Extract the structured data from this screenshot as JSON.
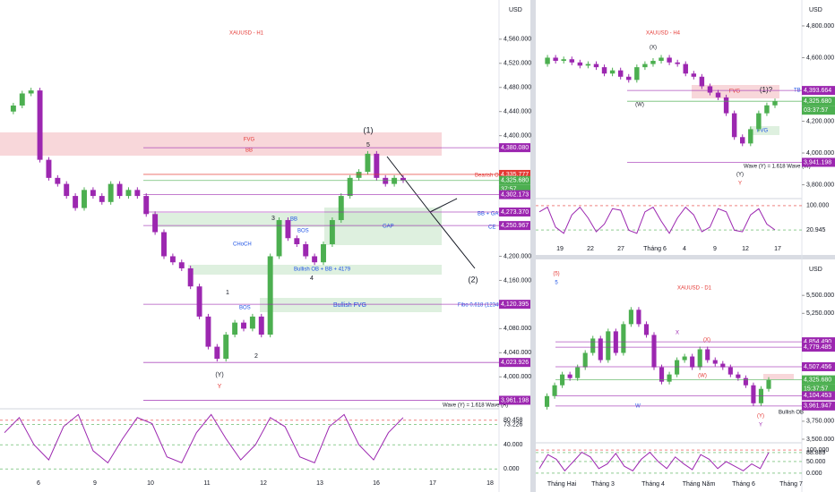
{
  "panels": [
    {
      "title": "XAUUSD - H1",
      "currency": "USD",
      "ylim": [
        3950,
        4625
      ],
      "yticks": [
        {
          "value": 4560,
          "label": "4,560.000"
        },
        {
          "value": 4520,
          "label": "4,520.000"
        },
        {
          "value": 4480,
          "label": "4,480.000"
        },
        {
          "value": 4440,
          "label": "4,440.000"
        },
        {
          "value": 4400,
          "label": "4,400.000"
        },
        {
          "value": 4200,
          "label": "4,200.000"
        },
        {
          "value": 4160,
          "label": "4,160.000"
        },
        {
          "value": 4080,
          "label": "4,080.000"
        },
        {
          "value": 4040,
          "label": "4,040.000"
        },
        {
          "value": 4000,
          "label": "4,000.000"
        }
      ],
      "tags": [
        {
          "value": 4380.08,
          "label": "4,380.080",
          "color": "#9c27b0"
        },
        {
          "value": 4335.777,
          "label": "4,335.777",
          "color": "#e53935"
        },
        {
          "value": 4325.68,
          "label": "4,325.680",
          "color": "#4caf50"
        },
        {
          "value": 4302.173,
          "label": "4,302.173",
          "color": "#9c27b0"
        },
        {
          "value": 4273.37,
          "label": "4,273.370",
          "color": "#9c27b0"
        },
        {
          "value": 4250.967,
          "label": "4,250.967",
          "color": "#9c27b0"
        },
        {
          "value": 4120.395,
          "label": "4,120.395",
          "color": "#9c27b0"
        },
        {
          "value": 4023.926,
          "label": "4,023.926",
          "color": "#9c27b0"
        },
        {
          "value": 3961.198,
          "label": "3,961.198",
          "color": "#9c27b0"
        }
      ],
      "countdown": "37:57",
      "prices": [
        4440,
        4450,
        4470,
        4475,
        4360,
        4330,
        4320,
        4300,
        4280,
        4310,
        4300,
        4290,
        4320,
        4300,
        4310,
        4300,
        4270,
        4240,
        4200,
        4190,
        4180,
        4150,
        4100,
        4050,
        4030,
        4070,
        4090,
        4080,
        4100,
        4070,
        4200,
        4260,
        4230,
        4220,
        4200,
        4190,
        4220,
        4260,
        4300,
        4330,
        4340,
        4370,
        4330,
        4320,
        4330,
        4326
      ],
      "osc_ylim": [
        -16,
        98
      ],
      "osc_ticks": [
        {
          "value": 80.458,
          "label": "80.458"
        },
        {
          "value": 73.226,
          "label": "73.226"
        },
        {
          "value": 40,
          "label": "40.000"
        },
        {
          "value": 0,
          "label": "0.000"
        }
      ],
      "osc": [
        60,
        85,
        40,
        15,
        70,
        90,
        30,
        10,
        50,
        85,
        75,
        20,
        10,
        60,
        90,
        50,
        15,
        40,
        85,
        70,
        20,
        10,
        70,
        90,
        40,
        15,
        60,
        85
      ],
      "time": [
        "6",
        "9",
        "10",
        "11",
        "12",
        "13",
        "16",
        "17",
        "18"
      ],
      "annotations": [
        "FVG",
        "BB",
        "(1)",
        "5",
        "Bearish OB",
        "BB + GAP",
        "CE",
        "BB",
        "GAP",
        "BOS",
        "CHoCH",
        "Bullish OB + BB + 4179",
        "Bullish FVG",
        "Fibo 0.618 (12345)",
        "BOS",
        "(Y)",
        "Y",
        "1",
        "2",
        "3",
        "4",
        "(2)",
        "Wave (Y) = 1.618 Wave (A)"
      ]
    },
    {
      "title": "XAUUSD - H4",
      "currency": "USD",
      "ylim": [
        3713,
        4963
      ],
      "yticks": [
        {
          "value": 4800,
          "label": "4,800.000"
        },
        {
          "value": 4600,
          "label": "4,600.000"
        },
        {
          "value": 4200,
          "label": "4,200.000"
        },
        {
          "value": 4000,
          "label": "4,000.000"
        },
        {
          "value": 3800,
          "label": "3,800.000"
        }
      ],
      "tags": [
        {
          "value": 4393.664,
          "label": "4,393.664",
          "color": "#9c27b0"
        },
        {
          "value": 4325.68,
          "label": "4,325.680",
          "color": "#4caf50"
        },
        {
          "value": 3941.198,
          "label": "3,941.198",
          "color": "#9c27b0"
        }
      ],
      "countdown": "03:37:57",
      "prices": [
        4560,
        4600,
        4580,
        4590,
        4570,
        4550,
        4560,
        4540,
        4500,
        4520,
        4480,
        4460,
        4540,
        4560,
        4580,
        4600,
        4570,
        4560,
        4500,
        4480,
        4420,
        4380,
        4350,
        4250,
        4100,
        4060,
        4150,
        4250,
        4300,
        4326
      ],
      "osc_ylim": [
        -11,
        123
      ],
      "osc_ticks": [
        {
          "value": 100,
          "label": "100.000"
        },
        {
          "value": 20.945,
          "label": "20.945"
        }
      ],
      "osc": [
        80,
        95,
        30,
        10,
        70,
        95,
        60,
        15,
        40,
        90,
        85,
        20,
        10,
        80,
        95,
        50,
        10,
        60,
        95,
        70,
        15,
        30,
        90,
        80,
        20,
        15,
        70,
        90,
        40,
        21
      ],
      "time": [
        "19",
        "22",
        "27",
        "Tháng 6",
        "4",
        "9",
        "12",
        "17"
      ],
      "annotations": [
        "(X)",
        "FVG",
        "(1)?",
        "(W)",
        "FVG",
        "(Y)",
        "Y",
        "Wave (Y) = 1.618 Wave (W)",
        "TB"
      ]
    },
    {
      "title": "XAUUSD - D1",
      "currency": "USD",
      "ylim": [
        3450,
        6000
      ],
      "yticks": [
        {
          "value": 5500,
          "label": "5,500.000"
        },
        {
          "value": 5250,
          "label": "5,250.000"
        },
        {
          "value": 3750,
          "label": "3,750.000"
        },
        {
          "value": 3500,
          "label": "3,500.000"
        }
      ],
      "tags": [
        {
          "value": 4854.49,
          "label": "4,854.490",
          "color": "#9c27b0"
        },
        {
          "value": 4779.485,
          "label": "4,779.485",
          "color": "#9c27b0"
        },
        {
          "value": 4507.456,
          "label": "4,507.456",
          "color": "#9c27b0"
        },
        {
          "value": 4325.68,
          "label": "4,325.680",
          "color": "#4caf50"
        },
        {
          "value": 4104.453,
          "label": "4,104.453",
          "color": "#9c27b0"
        },
        {
          "value": 3961.947,
          "label": "3,961.947",
          "color": "#9c27b0"
        }
      ],
      "countdown": "15:37:57",
      "prices": [
        3950,
        4100,
        4250,
        4400,
        4350,
        4500,
        4700,
        4900,
        4600,
        5000,
        4700,
        5100,
        5300,
        5100,
        4950,
        4500,
        4300,
        4400,
        4600,
        4650,
        4500,
        4750,
        4600,
        4550,
        4500,
        4400,
        4350,
        4250,
        4000,
        4200,
        4326
      ],
      "osc_ylim": [
        -35,
        131
      ],
      "osc_ticks": [
        {
          "value": 100,
          "label": "100.000"
        },
        {
          "value": 88.889,
          "label": "88.889"
        },
        {
          "value": 50,
          "label": "50.000"
        },
        {
          "value": 0,
          "label": "0.000"
        }
      ],
      "osc": [
        20,
        80,
        60,
        10,
        50,
        90,
        70,
        20,
        40,
        85,
        30,
        10,
        60,
        90,
        50,
        20,
        70,
        40,
        15,
        80,
        60,
        20,
        50,
        30,
        10,
        40,
        20,
        89
      ],
      "time": [
        "Tháng Hai",
        "Tháng 3",
        "Tháng 4",
        "Tháng Năm",
        "Tháng 6",
        "Tháng 7"
      ],
      "annotations": [
        "(5)",
        "5",
        "(X)",
        "X",
        "(W)",
        "W",
        "Bullish OB",
        "(Y)",
        "Y"
      ]
    }
  ]
}
